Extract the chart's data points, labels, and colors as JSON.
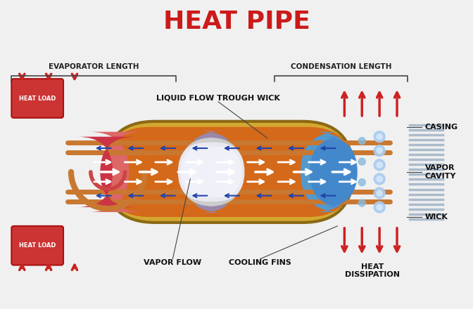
{
  "title": "HEAT PIPE",
  "title_color": "#cc1a1a",
  "title_fontsize": 26,
  "bg_color": "#f0f0f0",
  "labels": {
    "evaporator_length": "EVAPORATOR LENGTH",
    "condensation_length": "CONDENSATION LENGTH",
    "liquid_flow": "LIQUID FLOW TROUGH WICK",
    "vapor_flow": "VAPOR FLOW",
    "cooling_fins": "COOLING FINS",
    "heat_dissipation": "HEAT\nDISSIPATION",
    "heat_load": "HEAT LOAD",
    "casing": "CASING",
    "vapor_cavity": "VAPOR\nCAVITY",
    "wick": "WICK"
  },
  "colors": {
    "outer_casing_gold": "#d4a830",
    "wick_orange": "#d4691a",
    "evap_red": "#cc3333",
    "evap_pink": "#dd8888",
    "cond_blue": "#4488cc",
    "cond_light_blue": "#88bbdd",
    "vapor_gray": "#aaaaaa",
    "vapor_white": "#ddddee",
    "liquid_arrow": "#334488",
    "vapor_arrow": "#ffffff",
    "heat_load_box": "#cc3333",
    "arrow_dark_red": "#993333",
    "fins_color": "#cccccc",
    "bracket_color": "#444444",
    "label_color": "#111111"
  }
}
